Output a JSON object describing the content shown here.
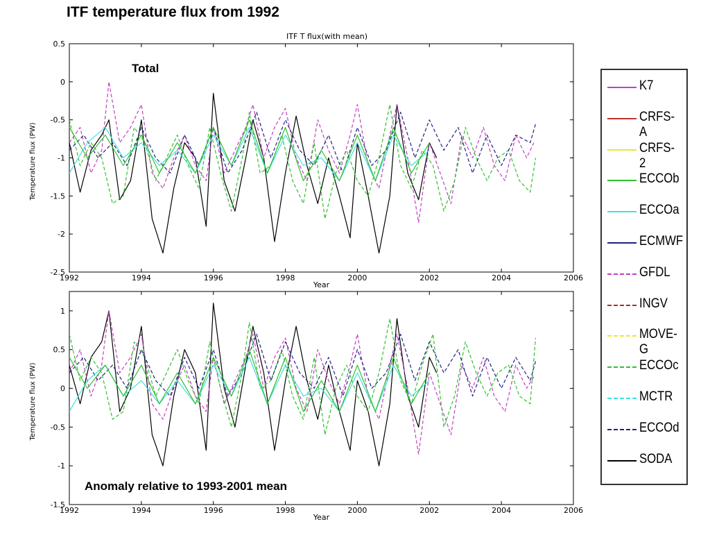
{
  "slide_title": "ITF temperature flux from 1992",
  "legend": [
    {
      "name": "K7",
      "color": "#c040c0",
      "dash": "solid"
    },
    {
      "name": "CRFS-A",
      "color": "#c03030",
      "dash": "solid"
    },
    {
      "name": "CRFS-2",
      "color": "#e8e830",
      "dash": "solid"
    },
    {
      "name": "ECCOb",
      "color": "#30c030",
      "dash": "solid"
    },
    {
      "name": "ECCOa",
      "color": "#40e0e0",
      "dash": "solid"
    },
    {
      "name": "ECMWF",
      "color": "#202080",
      "dash": "solid"
    },
    {
      "name": "GFDL",
      "color": "#c040c0",
      "dash": "dashed"
    },
    {
      "name": "INGV",
      "color": "#a03030",
      "dash": "dashed"
    },
    {
      "name": "MOVE-G",
      "color": "#e8e830",
      "dash": "dashed"
    },
    {
      "name": "ECCOc",
      "color": "#30c030",
      "dash": "dashed"
    },
    {
      "name": "MCTR",
      "color": "#40e0e0",
      "dash": "dashed"
    },
    {
      "name": "ECCOd",
      "color": "#202080",
      "dash": "dashed"
    },
    {
      "name": "SODA",
      "color": "#000000",
      "dash": "solid"
    }
  ],
  "chart_data": [
    {
      "type": "line",
      "title": "ITF T flux(with mean)",
      "annotation": "Total",
      "xlabel": "Year",
      "ylabel": "Temperature flux (PW)",
      "xlim": [
        1992,
        2006
      ],
      "ylim": [
        -2.5,
        0.5
      ],
      "xticks": [
        "1992",
        "1994",
        "1996",
        "1998",
        "2000",
        "2002",
        "2004",
        "2006"
      ],
      "yticks": [
        "0.5",
        "0",
        "-0.5",
        "-1",
        "-1.5",
        "-2",
        "-2.5"
      ],
      "series": [
        {
          "name": "SODA",
          "x": [
            1992.0,
            1992.3,
            1992.6,
            1992.9,
            1993.1,
            1993.4,
            1993.7,
            1994.0,
            1994.3,
            1994.6,
            1994.9,
            1995.2,
            1995.5,
            1995.8,
            1996.0,
            1996.3,
            1996.6,
            1996.9,
            1997.1,
            1997.4,
            1997.7,
            1998.0,
            1998.3,
            1998.6,
            1998.9,
            1999.2,
            1999.5,
            1999.8,
            2000.0,
            2000.3,
            2000.6,
            2000.9,
            2001.1,
            2001.4,
            2001.7,
            2002.0,
            2002.2
          ],
          "y": [
            -0.8,
            -1.45,
            -0.9,
            -0.7,
            -0.5,
            -1.55,
            -1.3,
            -0.5,
            -1.8,
            -2.25,
            -1.4,
            -0.8,
            -1.0,
            -1.9,
            -0.15,
            -1.3,
            -1.7,
            -1.0,
            -0.5,
            -1.0,
            -2.1,
            -1.2,
            -0.45,
            -1.1,
            -1.6,
            -1.0,
            -1.5,
            -2.05,
            -0.8,
            -1.5,
            -2.25,
            -1.5,
            -0.3,
            -1.2,
            -1.55,
            -0.8,
            -1.0
          ]
        },
        {
          "name": "GFDL",
          "x": [
            1992.0,
            1992.3,
            1992.6,
            1992.9,
            1993.1,
            1993.4,
            1993.7,
            1994.0,
            1994.3,
            1994.6,
            1994.9,
            1995.2,
            1995.5,
            1995.8,
            1996.0,
            1996.3,
            1996.6,
            1996.9,
            1997.1,
            1997.4,
            1997.7,
            1998.0,
            1998.3,
            1998.6,
            1998.9,
            1999.2,
            1999.5,
            1999.8,
            2000.0,
            2000.3,
            2000.6,
            2000.9,
            2001.1,
            2001.4,
            2001.7,
            2002.0,
            2002.3,
            2002.6,
            2002.9,
            2003.2,
            2003.5,
            2003.8,
            2004.1,
            2004.4,
            2004.7,
            2004.9
          ],
          "y": [
            -0.8,
            -0.6,
            -1.2,
            -0.9,
            0.0,
            -0.8,
            -0.6,
            -0.3,
            -1.2,
            -1.4,
            -1.0,
            -0.7,
            -1.1,
            -1.3,
            -0.6,
            -1.2,
            -0.9,
            -0.6,
            -0.3,
            -1.0,
            -0.6,
            -0.35,
            -1.0,
            -1.3,
            -0.5,
            -0.9,
            -1.2,
            -0.7,
            -0.3,
            -1.1,
            -1.4,
            -0.7,
            -0.3,
            -1.0,
            -1.85,
            -0.8,
            -1.2,
            -1.6,
            -0.7,
            -1.0,
            -0.6,
            -1.1,
            -1.3,
            -0.7,
            -1.0,
            -0.8
          ]
        },
        {
          "name": "ECCOc",
          "x": [
            1992.0,
            1992.3,
            1992.6,
            1992.9,
            1993.2,
            1993.5,
            1993.8,
            1994.1,
            1994.4,
            1994.7,
            1995.0,
            1995.3,
            1995.6,
            1995.9,
            1996.2,
            1996.5,
            1996.8,
            1997.0,
            1997.3,
            1997.6,
            1997.9,
            1998.2,
            1998.5,
            1998.8,
            1999.1,
            1999.4,
            1999.7,
            2000.0,
            2000.3,
            2000.6,
            2000.9,
            2001.2,
            2001.5,
            2001.8,
            2002.1,
            2002.4,
            2002.7,
            2003.0,
            2003.3,
            2003.6,
            2003.9,
            2004.2,
            2004.5,
            2004.8,
            2004.95
          ],
          "y": [
            -0.5,
            -1.1,
            -0.8,
            -1.0,
            -1.6,
            -1.5,
            -0.6,
            -0.8,
            -1.3,
            -1.0,
            -0.7,
            -1.1,
            -1.4,
            -0.6,
            -1.2,
            -1.7,
            -1.0,
            -0.4,
            -1.2,
            -1.1,
            -0.7,
            -1.3,
            -1.6,
            -0.8,
            -1.8,
            -1.2,
            -0.9,
            -1.3,
            -1.5,
            -1.0,
            -0.3,
            -1.1,
            -1.4,
            -0.9,
            -1.1,
            -1.7,
            -1.3,
            -0.6,
            -1.0,
            -1.3,
            -1.0,
            -0.9,
            -1.3,
            -1.45,
            -1.0
          ]
        },
        {
          "name": "ECCOd",
          "x": [
            1992.0,
            1992.4,
            1992.8,
            1993.2,
            1993.6,
            1994.0,
            1994.4,
            1994.8,
            1995.2,
            1995.6,
            1996.0,
            1996.4,
            1996.8,
            1997.2,
            1997.6,
            1998.0,
            1998.4,
            1998.8,
            1999.2,
            1999.6,
            2000.0,
            2000.4,
            2000.8,
            2001.2,
            2001.6,
            2002.0,
            2002.4,
            2002.8,
            2003.2,
            2003.6,
            2004.0,
            2004.4,
            2004.8,
            2004.95
          ],
          "y": [
            -0.9,
            -0.7,
            -1.0,
            -0.8,
            -1.1,
            -0.6,
            -1.0,
            -1.2,
            -0.7,
            -1.1,
            -0.6,
            -1.2,
            -0.9,
            -0.4,
            -1.0,
            -0.5,
            -0.9,
            -1.1,
            -0.7,
            -1.2,
            -0.6,
            -1.1,
            -0.9,
            -0.4,
            -1.0,
            -0.5,
            -0.9,
            -0.6,
            -1.2,
            -0.7,
            -1.1,
            -0.7,
            -0.8,
            -0.55
          ]
        },
        {
          "name": "ECCOa",
          "x": [
            1992.0,
            1992.5,
            1993.0,
            1993.5,
            1994.0,
            1994.5,
            1995.0,
            1995.5,
            1996.0,
            1996.5,
            1997.0,
            1997.5,
            1998.0,
            1998.5,
            1999.0,
            1999.5,
            2000.0,
            2000.5,
            2001.0,
            2001.5,
            2002.0
          ],
          "y": [
            -1.2,
            -0.8,
            -0.6,
            -1.0,
            -0.8,
            -1.1,
            -0.9,
            -1.2,
            -0.7,
            -1.1,
            -0.6,
            -1.2,
            -0.7,
            -1.1,
            -1.0,
            -1.3,
            -0.8,
            -1.3,
            -0.7,
            -1.1,
            -0.9
          ]
        },
        {
          "name": "ECCOb",
          "x": [
            1992.0,
            1992.5,
            1993.0,
            1993.5,
            1994.0,
            1994.5,
            1995.0,
            1995.5,
            1996.0,
            1996.5,
            1997.0,
            1997.5,
            1998.0,
            1998.5,
            1999.0,
            1999.5,
            2000.0,
            2000.5,
            2001.0,
            2001.5,
            2002.0
          ],
          "y": [
            -0.6,
            -1.0,
            -0.7,
            -1.1,
            -0.7,
            -1.2,
            -0.8,
            -1.2,
            -0.6,
            -1.1,
            -0.5,
            -1.2,
            -0.6,
            -1.3,
            -0.9,
            -1.3,
            -0.7,
            -1.3,
            -0.6,
            -1.2,
            -0.8
          ]
        }
      ]
    },
    {
      "type": "line",
      "title": "",
      "annotation": "Anomaly relative to 1993-2001 mean",
      "xlabel": "Year",
      "ylabel": "Temperature flux (PW)",
      "xlim": [
        1992,
        2006
      ],
      "ylim": [
        -1.5,
        1.25
      ],
      "xticks": [
        "1992",
        "1994",
        "1996",
        "1998",
        "2000",
        "2002",
        "2004",
        "2006"
      ],
      "yticks": [
        "1",
        "0.5",
        "0",
        "-0.5",
        "-1",
        "-1.5"
      ],
      "series": [
        {
          "name": "SODA",
          "x": [
            1992.0,
            1992.3,
            1992.6,
            1992.9,
            1993.1,
            1993.4,
            1993.7,
            1994.0,
            1994.3,
            1994.6,
            1994.9,
            1995.2,
            1995.5,
            1995.8,
            1996.0,
            1996.3,
            1996.6,
            1996.9,
            1997.1,
            1997.4,
            1997.7,
            1998.0,
            1998.3,
            1998.6,
            1998.9,
            1999.2,
            1999.5,
            1999.8,
            2000.0,
            2000.3,
            2000.6,
            2000.9,
            2001.1,
            2001.4,
            2001.7,
            2002.0,
            2002.2
          ],
          "y": [
            0.3,
            -0.2,
            0.4,
            0.6,
            1.0,
            -0.3,
            0.0,
            0.8,
            -0.6,
            -1.0,
            -0.1,
            0.5,
            0.2,
            -0.8,
            1.1,
            0.0,
            -0.5,
            0.3,
            0.8,
            0.2,
            -0.8,
            0.1,
            0.8,
            0.1,
            -0.4,
            0.3,
            -0.3,
            -0.8,
            0.1,
            -0.3,
            -1.0,
            -0.2,
            0.9,
            -0.1,
            -0.5,
            0.4,
            0.2
          ]
        },
        {
          "name": "GFDL",
          "x": [
            1992.0,
            1992.3,
            1992.6,
            1992.9,
            1993.1,
            1993.4,
            1993.7,
            1994.0,
            1994.3,
            1994.6,
            1994.9,
            1995.2,
            1995.5,
            1995.8,
            1996.0,
            1996.3,
            1996.6,
            1996.9,
            1997.1,
            1997.4,
            1997.7,
            1998.0,
            1998.3,
            1998.6,
            1998.9,
            1999.2,
            1999.5,
            1999.8,
            2000.0,
            2000.3,
            2000.6,
            2000.9,
            2001.1,
            2001.4,
            2001.7,
            2002.0,
            2002.3,
            2002.6,
            2002.9,
            2003.2,
            2003.5,
            2003.8,
            2004.1,
            2004.4,
            2004.7,
            2004.9
          ],
          "y": [
            0.2,
            0.5,
            -0.1,
            0.3,
            1.0,
            0.2,
            0.4,
            0.7,
            -0.2,
            -0.4,
            0.0,
            0.3,
            -0.1,
            -0.3,
            0.4,
            -0.2,
            0.1,
            0.4,
            0.7,
            0.0,
            0.4,
            0.65,
            0.0,
            -0.3,
            0.5,
            0.1,
            -0.2,
            0.3,
            0.7,
            -0.1,
            -0.4,
            0.3,
            0.7,
            0.0,
            -0.85,
            0.2,
            -0.2,
            -0.6,
            0.3,
            0.0,
            0.4,
            -0.1,
            -0.3,
            0.3,
            0.0,
            0.15
          ]
        },
        {
          "name": "ECCOc",
          "x": [
            1992.0,
            1992.3,
            1992.6,
            1992.9,
            1993.2,
            1993.5,
            1993.8,
            1994.1,
            1994.4,
            1994.7,
            1995.0,
            1995.3,
            1995.6,
            1995.9,
            1996.2,
            1996.5,
            1996.8,
            1997.0,
            1997.3,
            1997.6,
            1997.9,
            1998.2,
            1998.5,
            1998.8,
            1999.1,
            1999.4,
            1999.7,
            2000.0,
            2000.3,
            2000.6,
            2000.9,
            2001.2,
            2001.5,
            2001.8,
            2002.1,
            2002.4,
            2002.7,
            2003.0,
            2003.3,
            2003.6,
            2003.9,
            2004.2,
            2004.5,
            2004.8,
            2004.95
          ],
          "y": [
            0.7,
            0.1,
            0.4,
            0.2,
            -0.4,
            -0.3,
            0.6,
            0.4,
            -0.1,
            0.2,
            0.5,
            0.1,
            -0.2,
            0.6,
            0.0,
            -0.5,
            0.2,
            0.85,
            0.0,
            0.1,
            0.5,
            -0.1,
            -0.4,
            0.4,
            -0.6,
            0.0,
            0.3,
            -0.1,
            -0.3,
            0.2,
            0.9,
            0.1,
            -0.2,
            0.3,
            0.7,
            -0.5,
            -0.1,
            0.6,
            0.2,
            -0.1,
            0.2,
            0.3,
            -0.1,
            -0.2,
            0.65
          ]
        },
        {
          "name": "ECCOd",
          "x": [
            1992.0,
            1992.4,
            1992.8,
            1993.2,
            1993.6,
            1994.0,
            1994.4,
            1994.8,
            1995.2,
            1995.6,
            1996.0,
            1996.4,
            1996.8,
            1997.2,
            1997.6,
            1998.0,
            1998.4,
            1998.8,
            1999.2,
            1999.6,
            2000.0,
            2000.4,
            2000.8,
            2001.2,
            2001.6,
            2002.0,
            2002.4,
            2002.8,
            2003.2,
            2003.6,
            2004.0,
            2004.4,
            2004.8,
            2004.95
          ],
          "y": [
            0.2,
            0.4,
            0.1,
            0.3,
            0.0,
            0.5,
            0.1,
            -0.1,
            0.4,
            0.0,
            0.5,
            -0.1,
            0.2,
            0.7,
            0.1,
            0.6,
            0.2,
            0.0,
            0.4,
            -0.1,
            0.5,
            0.0,
            0.2,
            0.7,
            0.1,
            0.6,
            0.2,
            0.5,
            -0.1,
            0.4,
            0.0,
            0.4,
            0.1,
            0.35
          ]
        },
        {
          "name": "ECCOa",
          "x": [
            1992.0,
            1992.5,
            1993.0,
            1993.5,
            1994.0,
            1994.5,
            1995.0,
            1995.5,
            1996.0,
            1996.5,
            1997.0,
            1997.5,
            1998.0,
            1998.5,
            1999.0,
            1999.5,
            2000.0,
            2000.5,
            2001.0,
            2001.5,
            2002.0
          ],
          "y": [
            -0.3,
            0.1,
            0.3,
            -0.1,
            0.1,
            -0.2,
            0.1,
            -0.2,
            0.3,
            -0.1,
            0.4,
            -0.2,
            0.3,
            -0.1,
            0.0,
            -0.3,
            0.2,
            -0.3,
            0.3,
            -0.1,
            0.1
          ]
        },
        {
          "name": "ECCOb",
          "x": [
            1992.0,
            1992.5,
            1993.0,
            1993.5,
            1994.0,
            1994.5,
            1995.0,
            1995.5,
            1996.0,
            1996.5,
            1997.0,
            1997.5,
            1998.0,
            1998.5,
            1999.0,
            1999.5,
            2000.0,
            2000.5,
            2001.0,
            2001.5,
            2002.0
          ],
          "y": [
            0.4,
            0.0,
            0.3,
            -0.1,
            0.3,
            -0.2,
            0.2,
            -0.2,
            0.4,
            -0.1,
            0.5,
            -0.2,
            0.4,
            -0.3,
            0.1,
            -0.3,
            0.3,
            -0.3,
            0.4,
            -0.2,
            0.2
          ]
        }
      ]
    }
  ]
}
